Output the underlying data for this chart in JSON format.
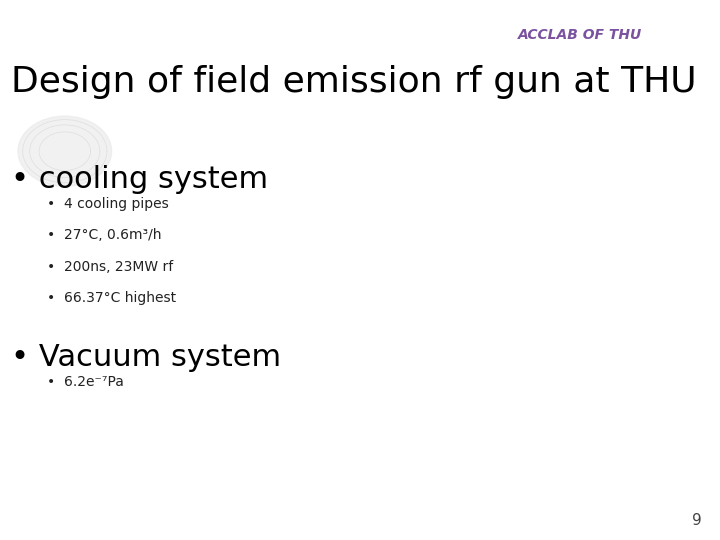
{
  "title": "Design of field emission rf gun at THU",
  "acclab_text": "ACCLAB OF THU",
  "acclab_color": "#7B52A0",
  "background_color": "#ffffff",
  "bullet1_text": "• cooling system",
  "bullet1_fontsize": 22,
  "sub_bullets": [
    "4 cooling pipes",
    "27°C, 0.6m³/h",
    "200ns, 23MW rf",
    "66.37°C highest"
  ],
  "bullet2_text": "• Vacuum system",
  "bullet2_fontsize": 22,
  "sub_bullet2": "6.2e⁻⁷Pa",
  "page_number": "9",
  "title_fontsize": 26,
  "title_color": "#000000",
  "sub_bullet_fontsize": 10,
  "watermark_color": "#dddddd"
}
